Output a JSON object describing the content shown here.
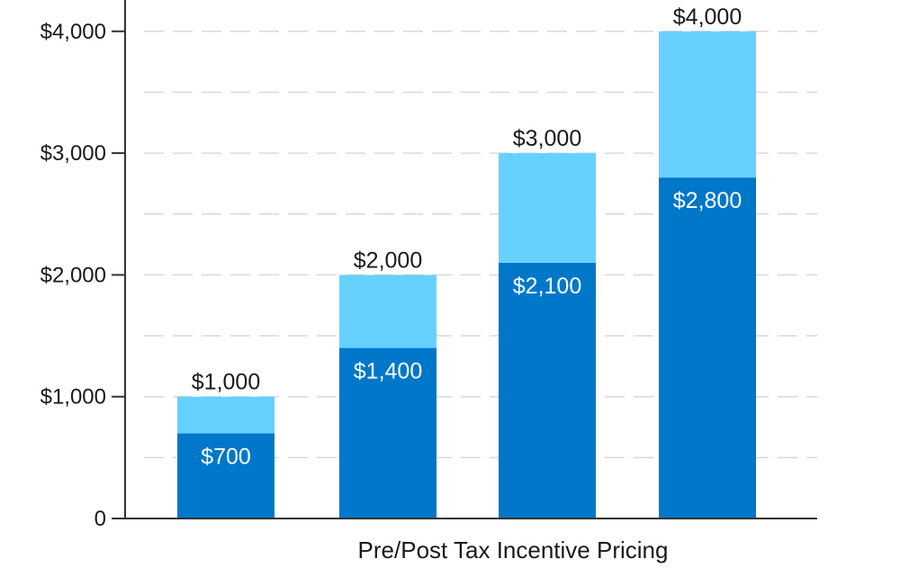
{
  "chart_data": {
    "type": "bar",
    "stacked": true,
    "categories": [
      "",
      "",
      "",
      ""
    ],
    "series": [
      {
        "values": [
          700,
          1400,
          2100,
          2800
        ],
        "color": "#0077c8"
      },
      {
        "values": [
          300,
          600,
          900,
          1200
        ],
        "color": "#66d1ff"
      }
    ],
    "bar_value_labels": [
      "$700",
      "$1,400",
      "$2,100",
      "$2,800"
    ],
    "bar_total_labels": [
      "$1,000",
      "$2,000",
      "$3,000",
      "$4,000"
    ],
    "yticks": [
      0,
      1000,
      2000,
      3000,
      4000
    ],
    "ytick_labels": [
      "0",
      "$1,000",
      "$2,000",
      "$3,000",
      "$4,000"
    ],
    "ylim": [
      0,
      4200
    ],
    "xlabel": "Pre/Post Tax Incentive Pricing",
    "ylabel": "",
    "title": "",
    "grid": true,
    "grid_step": 500
  }
}
